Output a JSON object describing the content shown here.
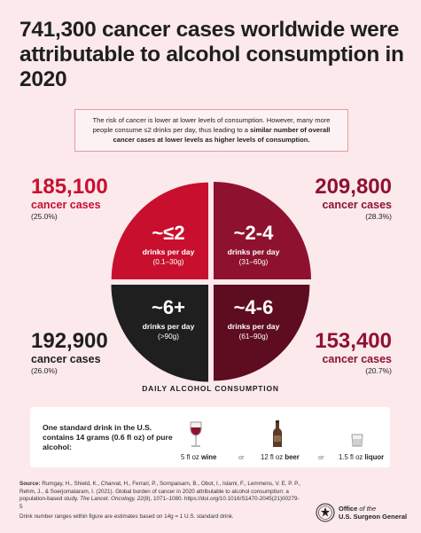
{
  "title": "741,300 cancer cases worldwide were attributable to alcohol consumption in 2020",
  "note": {
    "part1": "The risk of cancer is lower at lower levels of consumption. However, many more people consume ≤2 drinks per day, thus leading to a ",
    "bold": "similar number of overall cancer cases at lower levels as higher levels of consumption.",
    "part2": ""
  },
  "chart_data": {
    "type": "pie",
    "title": "741,300 cancer cases worldwide were attributable to alcohol consumption in 2020",
    "xlabel": "DAILY ALCOHOL CONSUMPTION",
    "slices": [
      {
        "key": "le2",
        "label": "~≤2",
        "sub": "drinks per day",
        "range": "(0.1–30g)",
        "value": 185100,
        "value_label": "185,100",
        "cases_label": "cancer cases",
        "percent_label": "(25.0%)",
        "percent": 25.0,
        "color": "#c8102e"
      },
      {
        "key": "2to4",
        "label": "~2-4",
        "sub": "drinks per day",
        "range": "(31–60g)",
        "value": 209800,
        "value_label": "209,800",
        "cases_label": "cancer cases",
        "percent_label": "(28.3%)",
        "percent": 28.3,
        "color": "#8e1230"
      },
      {
        "key": "4to6",
        "label": "~4-6",
        "sub": "drinks per day",
        "range": "(61–90g)",
        "value": 153400,
        "value_label": "153,400",
        "cases_label": "cancer cases",
        "percent_label": "(20.7%)",
        "percent": 20.7,
        "color": "#5e0c1f"
      },
      {
        "key": "6plus",
        "label": "~6+",
        "sub": "drinks per day",
        "range": "(>90g)",
        "value": 192900,
        "value_label": "192,900",
        "cases_label": "cancer cases",
        "percent_label": "(26.0%)",
        "percent": 26.0,
        "color": "#1f1f1f"
      }
    ]
  },
  "standard_drink": {
    "text": "One standard drink in the U.S. contains 14 grams (0.6 fl oz) of pure alcohol:",
    "wine_amount": "5 fl oz",
    "wine": "wine",
    "beer_amount": "12 fl oz",
    "beer": "beer",
    "liquor_amount": "1.5 fl oz",
    "liquor": "liquor",
    "or": "or"
  },
  "source": {
    "label": "Source:",
    "text1": " Rumgay, H., Shield, K., Charvat, H., Ferrari, P., Sornpaisarn, B., Obot, I., Islami, F., Lemmens, V. E. P. P., Rehm, J., & Soerjomataram, I. (2021). Global burden of cancer in 2020 attributable to alcohol consumption: a population-based study. ",
    "journal": "The Lancet. Oncology, 22",
    "text2": "(8), 1071–1080. https://doi.org/10.1016/S1470-2045(21)00279-5",
    "footnote": "Drink number ranges within figure are estimates based on 14g = 1 U.S. standard drink."
  },
  "logo": {
    "line1a": "Office",
    "line1b": "of the",
    "line2": "U.S. Surgeon General"
  },
  "colors": {
    "background": "#fbe9ec",
    "accent": "#c8102e"
  }
}
